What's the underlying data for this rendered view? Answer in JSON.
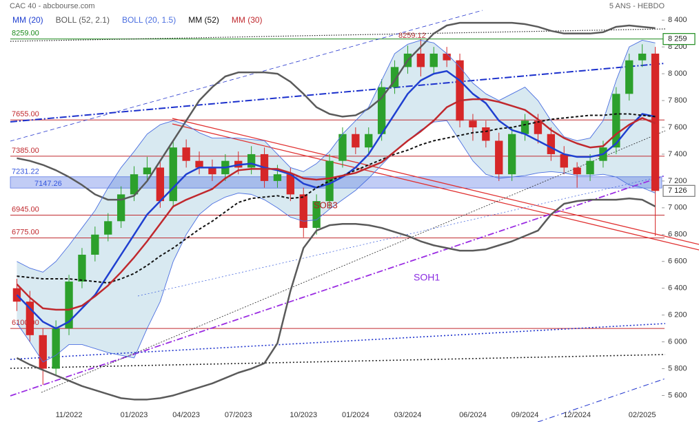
{
  "chart_data": {
    "type": "candlestick",
    "title": "CAC 40 - abcbourse.com",
    "subtitle": "5 ANS - HEBDO",
    "categories": [
      null,
      null,
      null,
      null,
      "11/2022",
      null,
      null,
      null,
      null,
      "01/2023",
      null,
      null,
      null,
      "04/2023",
      null,
      null,
      null,
      "07/2023",
      null,
      null,
      null,
      null,
      "10/2023",
      null,
      null,
      null,
      "01/2024",
      null,
      null,
      null,
      "03/2024",
      null,
      null,
      null,
      null,
      "06/2024",
      null,
      null,
      null,
      "09/2024",
      null,
      null,
      null,
      "12/2024",
      null,
      null,
      null,
      null,
      "02/2025",
      null
    ],
    "candles": {
      "up_color": "#2ca02c",
      "down_color": "#d62728",
      "open": [
        6400,
        6300,
        6050,
        5800,
        6100,
        6450,
        6650,
        6800,
        6900,
        7100,
        7250,
        7300,
        7050,
        7450,
        7350,
        7300,
        7250,
        7350,
        7300,
        7400,
        7200,
        7250,
        7100,
        6850,
        7050,
        7350,
        7550,
        7450,
        7550,
        7900,
        8050,
        8150,
        8050,
        8150,
        8100,
        7650,
        7600,
        7500,
        7250,
        7550,
        7650,
        7550,
        7400,
        7300,
        7250,
        7350,
        7450,
        7850,
        8100,
        8150
      ],
      "high": [
        6470,
        6380,
        6100,
        6160,
        6500,
        6700,
        6860,
        6960,
        7160,
        7310,
        7380,
        7360,
        7500,
        7510,
        7420,
        7360,
        7400,
        7420,
        7460,
        7450,
        7320,
        7300,
        7150,
        7100,
        7400,
        7600,
        7600,
        7600,
        7960,
        8100,
        8210,
        8259,
        8200,
        8200,
        8150,
        7700,
        7650,
        7560,
        7600,
        7700,
        7700,
        7600,
        7460,
        7340,
        7400,
        7500,
        7900,
        8150,
        8220,
        8200
      ],
      "low": [
        6230,
        6000,
        5680,
        5750,
        6050,
        6400,
        6600,
        6750,
        6850,
        7050,
        7200,
        7000,
        7000,
        7300,
        7250,
        7200,
        7200,
        7250,
        7250,
        7150,
        7150,
        7050,
        6780,
        6800,
        7000,
        7300,
        7400,
        7400,
        7500,
        7850,
        8000,
        7980,
        8000,
        8050,
        7600,
        7500,
        7450,
        7200,
        7200,
        7500,
        7480,
        7350,
        7250,
        7150,
        7200,
        7300,
        7400,
        7800,
        8050,
        6790
      ],
      "close": [
        6300,
        6050,
        5800,
        6100,
        6450,
        6650,
        6800,
        6900,
        7100,
        7250,
        7300,
        7050,
        7450,
        7350,
        7300,
        7250,
        7350,
        7300,
        7400,
        7200,
        7250,
        7100,
        6850,
        7050,
        7350,
        7550,
        7450,
        7550,
        7900,
        8050,
        8150,
        8050,
        8150,
        8100,
        7650,
        7600,
        7500,
        7250,
        7550,
        7650,
        7550,
        7400,
        7300,
        7250,
        7350,
        7450,
        7850,
        8100,
        8150,
        7126
      ]
    },
    "series": [
      {
        "name": "MM (20)",
        "color": "#1f3fd0",
        "values": [
          6350,
          6250,
          6150,
          6100,
          6150,
          6250,
          6350,
          6500,
          6650,
          6800,
          6950,
          7050,
          7150,
          7250,
          7300,
          7300,
          7300,
          7320,
          7330,
          7300,
          7280,
          7250,
          7180,
          7150,
          7180,
          7230,
          7300,
          7400,
          7550,
          7700,
          7850,
          7950,
          8000,
          8020,
          7950,
          7850,
          7780,
          7650,
          7580,
          7550,
          7500,
          7450,
          7400,
          7380,
          7380,
          7400,
          7480,
          7600,
          7700,
          7680
        ]
      },
      {
        "name": "BOLL (52, 2.1)",
        "color": "#5a5a5a",
        "upper": [
          7370,
          7350,
          7320,
          7280,
          7230,
          7170,
          7100,
          7060,
          7060,
          7090,
          7200,
          7350,
          7500,
          7650,
          7800,
          7900,
          7980,
          8010,
          8010,
          8010,
          8000,
          7940,
          7850,
          7750,
          7700,
          7680,
          7690,
          7740,
          7820,
          7950,
          8100,
          8200,
          8300,
          8360,
          8380,
          8380,
          8380,
          8380,
          8380,
          8370,
          8350,
          8320,
          8300,
          8300,
          8300,
          8310,
          8350,
          8360,
          8350,
          8340
        ],
        "lower": [
          5880,
          5830,
          5790,
          5750,
          5710,
          5670,
          5640,
          5610,
          5580,
          5570,
          5570,
          5580,
          5600,
          5630,
          5660,
          5690,
          5730,
          5770,
          5800,
          5840,
          5990,
          6380,
          6700,
          6830,
          6870,
          6880,
          6880,
          6870,
          6850,
          6820,
          6790,
          6750,
          6720,
          6700,
          6680,
          6680,
          6690,
          6720,
          6750,
          6790,
          6830,
          6950,
          7030,
          7050,
          7060,
          7060,
          7060,
          7070,
          7060,
          7010
        ]
      },
      {
        "name": "BOLL (20, 1.5)",
        "color": "#4a6ee0",
        "upper": [
          6600,
          6550,
          6520,
          6600,
          6720,
          6850,
          6980,
          7150,
          7300,
          7420,
          7550,
          7620,
          7650,
          7620,
          7560,
          7520,
          7520,
          7520,
          7510,
          7500,
          7400,
          7300,
          7270,
          7330,
          7420,
          7550,
          7650,
          7750,
          7950,
          8150,
          8220,
          8250,
          8230,
          8150,
          8050,
          7930,
          7850,
          7800,
          7850,
          7900,
          7800,
          7650,
          7530,
          7500,
          7520,
          7650,
          7950,
          8200,
          8250,
          8230
        ],
        "lower": [
          6140,
          6000,
          5850,
          5900,
          5980,
          5980,
          5950,
          5920,
          5900,
          5880,
          6100,
          6300,
          6600,
          6800,
          6950,
          7030,
          7080,
          7110,
          7100,
          7060,
          7000,
          6930,
          6900,
          6910,
          6990,
          7060,
          7130,
          7220,
          7320,
          7420,
          7500,
          7580,
          7640,
          7650,
          7500,
          7350,
          7250,
          7220,
          7230,
          7240,
          7260,
          7270,
          7260,
          7240,
          7240,
          7250,
          7230,
          7170,
          7150,
          7110
        ]
      },
      {
        "name": "MM (52)",
        "color": "#111111",
        "dash": true,
        "values": [
          6490,
          6480,
          6470,
          6470,
          6470,
          6460,
          6450,
          6440,
          6470,
          6510,
          6570,
          6640,
          6700,
          6770,
          6840,
          6900,
          6970,
          7040,
          7070,
          7080,
          7090,
          7070,
          7080,
          7150,
          7200,
          7240,
          7280,
          7320,
          7360,
          7400,
          7430,
          7470,
          7500,
          7520,
          7540,
          7560,
          7570,
          7590,
          7600,
          7620,
          7640,
          7660,
          7670,
          7680,
          7690,
          7690,
          7700,
          7700,
          7690,
          7680
        ]
      },
      {
        "name": "MM (30)",
        "color": "#c0282d",
        "values": [
          6430,
          6330,
          6250,
          6240,
          6240,
          6270,
          6340,
          6420,
          6520,
          6630,
          6750,
          6880,
          7010,
          7060,
          7100,
          7140,
          7220,
          7280,
          7290,
          7290,
          7290,
          7260,
          7220,
          7210,
          7220,
          7240,
          7260,
          7300,
          7340,
          7420,
          7500,
          7570,
          7650,
          7750,
          7800,
          7810,
          7810,
          7790,
          7760,
          7730,
          7660,
          7580,
          7520,
          7480,
          7450,
          7460,
          7550,
          7620,
          7670,
          7630
        ]
      }
    ],
    "levels": [
      {
        "value": 8259,
        "label": "8259.00",
        "color": "#1a8a1a"
      },
      {
        "value": 7655,
        "label": "7655.00",
        "color": "#c0282d"
      },
      {
        "value": 7385,
        "label": "7385.00",
        "color": "#c0282d"
      },
      {
        "value": 6945,
        "label": "6945.00",
        "color": "#c0282d"
      },
      {
        "value": 6775,
        "label": "6775.00",
        "color": "#c0282d"
      },
      {
        "value": 6100,
        "label": "6100.00",
        "color": "#c0282d"
      }
    ],
    "zone": {
      "high": {
        "value": 7231.22,
        "label": "7231.22"
      },
      "low": {
        "value": 7147.26,
        "label": "7147.26"
      },
      "color": "#3355dd"
    },
    "price_tags": [
      {
        "value": 8259,
        "label": "8 259",
        "color": "#1a8a1a"
      },
      {
        "value": 7126,
        "label": "7 126",
        "color": "#777777"
      }
    ],
    "annotations": [
      {
        "text": "8259.12",
        "color": "#b03030"
      },
      {
        "text": "SOB3",
        "color": "#b02020"
      },
      {
        "text": "SOH1",
        "color": "#8a2be2"
      }
    ],
    "ylim": [
      5510,
      8550
    ],
    "yticks": [
      {
        "value": 5600,
        "label": "5 600"
      },
      {
        "value": 5800,
        "label": "5 800"
      },
      {
        "value": 6000,
        "label": "6 000"
      },
      {
        "value": 6200,
        "label": "6 200"
      },
      {
        "value": 6400,
        "label": "6 400"
      },
      {
        "value": 6600,
        "label": "6 600"
      },
      {
        "value": 6800,
        "label": "6 800"
      },
      {
        "value": 7000,
        "label": "7 000"
      },
      {
        "value": 7200,
        "label": "7 200"
      },
      {
        "value": 7400,
        "label": "7 400"
      },
      {
        "value": 7600,
        "label": "7 600"
      },
      {
        "value": 7800,
        "label": "7 800"
      },
      {
        "value": 8000,
        "label": "8 000"
      },
      {
        "value": 8200,
        "label": "8 200"
      },
      {
        "value": 8400,
        "label": "8 400"
      }
    ]
  }
}
